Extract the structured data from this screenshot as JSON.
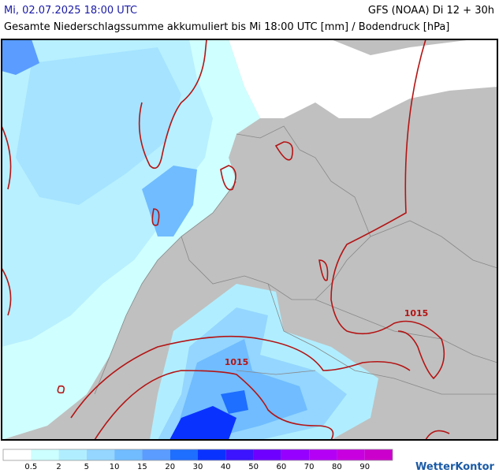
{
  "header": {
    "datetime": "Mi, 02.07.2025 18:00 UTC",
    "model": "GFS (NOAA) Di 12 + 30h",
    "subtitle": "Gesamte Niederschlagssumme akkumuliert bis Mi 18:00 UTC [mm] / Bodendruck [hPa]"
  },
  "map": {
    "isobar_labels": [
      "1015",
      "1015"
    ]
  },
  "legend": {
    "labels": [
      0.5,
      2,
      5,
      10,
      15,
      20,
      30,
      40,
      50,
      60,
      70,
      80,
      90
    ],
    "colors": [
      "#ffffff",
      "#ccffff",
      "#b0eeff",
      "#94d6ff",
      "#70bcff",
      "#5a9cff",
      "#1e6eff",
      "#0a32ff",
      "#3c14ff",
      "#6e00ff",
      "#9600ff",
      "#b400f5",
      "#c800e0",
      "#cc00cc"
    ]
  },
  "logo": "WetterKontor"
}
